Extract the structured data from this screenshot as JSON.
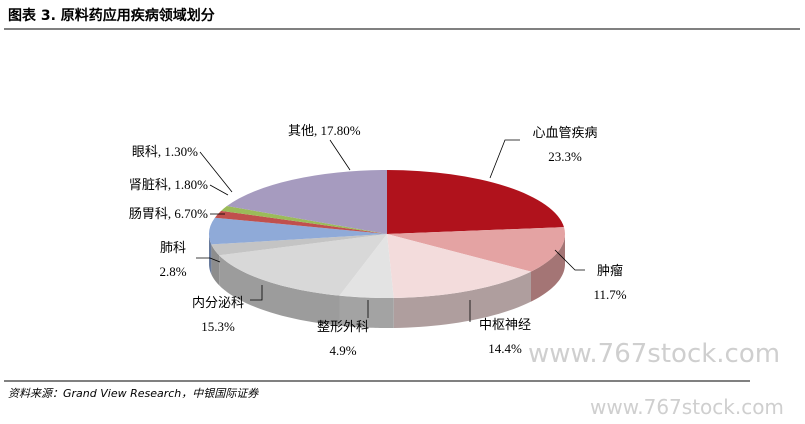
{
  "header": {
    "title": "图表 3. 原料药应用疾病领域划分"
  },
  "chart_data": {
    "type": "pie3d",
    "categories": [
      "心血管疾病",
      "肿瘤",
      "中枢神经",
      "整形外科",
      "内分泌科",
      "肺科",
      "肠胃科",
      "肾脏科",
      "眼科",
      "其他"
    ],
    "values": [
      23.3,
      11.7,
      14.4,
      4.9,
      15.3,
      2.8,
      6.7,
      1.8,
      1.3,
      17.8
    ],
    "value_labels": [
      "23.3%",
      "11.7%",
      "14.4%",
      "4.9%",
      "15.3%",
      "2.8%",
      ", 6.70%",
      ", 1.80%",
      ", 1.30%",
      ", 17.80%"
    ],
    "colors": [
      "#b0121c",
      "#e4a3a3",
      "#f3dcdc",
      "#e3e3e3",
      "#d8d8d8",
      "#c4c4c4",
      "#8faad8",
      "#c0504d",
      "#9bbb59",
      "#a69bbf"
    ]
  },
  "footer": {
    "source": "资料来源：Grand View Research，中银国际证券"
  },
  "watermarks": [
    "www.767stock.com",
    "www.767stock.com"
  ]
}
